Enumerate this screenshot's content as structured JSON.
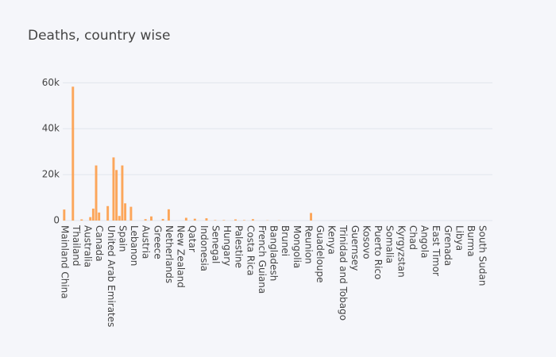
{
  "chart_data": {
    "type": "bar",
    "title": "Deaths, country wise",
    "categories": [
      "Mainland China",
      null,
      null,
      null,
      "Thailand",
      null,
      null,
      null,
      "Australia",
      null,
      null,
      null,
      "Canada",
      null,
      null,
      null,
      "United Arab Emirates",
      null,
      null,
      null,
      "Spain",
      null,
      null,
      null,
      "Lebanon",
      null,
      null,
      null,
      "Austria",
      null,
      null,
      null,
      "Greece",
      null,
      null,
      null,
      "Netherlands",
      null,
      null,
      null,
      "New Zealand",
      null,
      null,
      null,
      "Qatar",
      null,
      null,
      null,
      "Indonesia",
      null,
      null,
      null,
      "Senegal",
      null,
      null,
      null,
      "Hungary",
      null,
      null,
      null,
      "Palestine",
      null,
      null,
      null,
      "Costa Rica",
      null,
      null,
      null,
      "French Guiana",
      null,
      null,
      null,
      "Bangladesh",
      null,
      null,
      null,
      "Brunei",
      null,
      null,
      null,
      "Mongolia",
      null,
      null,
      null,
      "Reunion",
      null,
      null,
      null,
      "Guadeloupe",
      null,
      null,
      null,
      "Kenya",
      null,
      null,
      null,
      "Trinidad and Tobago",
      null,
      null,
      null,
      "Guernsey",
      null,
      null,
      null,
      "Kosovo",
      null,
      null,
      null,
      "Puerto Rico",
      null,
      null,
      null,
      "Somalia",
      null,
      null,
      null,
      "Kyrgyzstan",
      null,
      null,
      null,
      "Chad",
      null,
      null,
      null,
      "Angola",
      null,
      null,
      null,
      "East Timor",
      null,
      null,
      null,
      "Grenada",
      null,
      null,
      null,
      "Libya",
      null,
      null,
      null,
      "Burma",
      null,
      null,
      null,
      "South Sudan",
      null,
      null,
      null
    ],
    "values": [
      4800,
      0,
      0,
      58300,
      0,
      0,
      500,
      0,
      0,
      1500,
      5200,
      24000,
      3500,
      0,
      0,
      6300,
      0,
      27500,
      22000,
      2000,
      24000,
      7500,
      0,
      6000,
      0,
      0,
      0,
      0,
      600,
      0,
      1800,
      0,
      0,
      0,
      700,
      0,
      4900,
      0,
      0,
      0,
      0,
      0,
      1200,
      0,
      0,
      800,
      0,
      0,
      0,
      1000,
      0,
      0,
      200,
      0,
      0,
      200,
      0,
      0,
      0,
      500,
      0,
      0,
      200,
      0,
      0,
      600,
      0,
      0,
      0,
      0,
      100,
      0,
      0,
      0,
      100,
      0,
      0,
      0,
      0,
      0,
      0,
      0,
      0,
      0,
      0,
      3300,
      0,
      0,
      0,
      0,
      0,
      0,
      0,
      0,
      0,
      0,
      0,
      0,
      0,
      0,
      0,
      0,
      0,
      0,
      0,
      0,
      0,
      0,
      0,
      0,
      0,
      0,
      0,
      0,
      0,
      0,
      0,
      0,
      0,
      0,
      0,
      0,
      0,
      0,
      0,
      0,
      0,
      0,
      0,
      0,
      0,
      0,
      0,
      0,
      0,
      0,
      0,
      0,
      0,
      0,
      0,
      0,
      0,
      0,
      0,
      0,
      0,
      0
    ],
    "color": "#fca65a",
    "ylim": [
      0,
      61500
    ],
    "yticks": [
      0,
      {
        "value": 20000,
        "label": "20k"
      },
      {
        "value": 40000,
        "label": "40k"
      },
      {
        "value": 60000,
        "label": "60k"
      }
    ],
    "grid": true
  }
}
